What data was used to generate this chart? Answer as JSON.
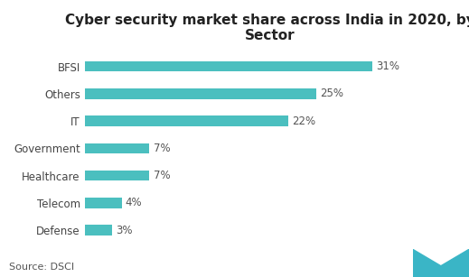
{
  "title": "Cyber security market share across India in 2020, by\nSector",
  "categories": [
    "BFSI",
    "Others",
    "IT",
    "Government",
    "Healthcare",
    "Telecom",
    "Defense"
  ],
  "values": [
    31,
    25,
    22,
    7,
    7,
    4,
    3
  ],
  "labels": [
    "31%",
    "25%",
    "22%",
    "7%",
    "7%",
    "4%",
    "3%"
  ],
  "bar_color": "#4bbfbf",
  "background_color": "#ffffff",
  "source_text": "Source: DSCI",
  "title_fontsize": 11,
  "label_fontsize": 8.5,
  "tick_fontsize": 8.5,
  "source_fontsize": 8,
  "xlim": [
    0,
    40
  ]
}
